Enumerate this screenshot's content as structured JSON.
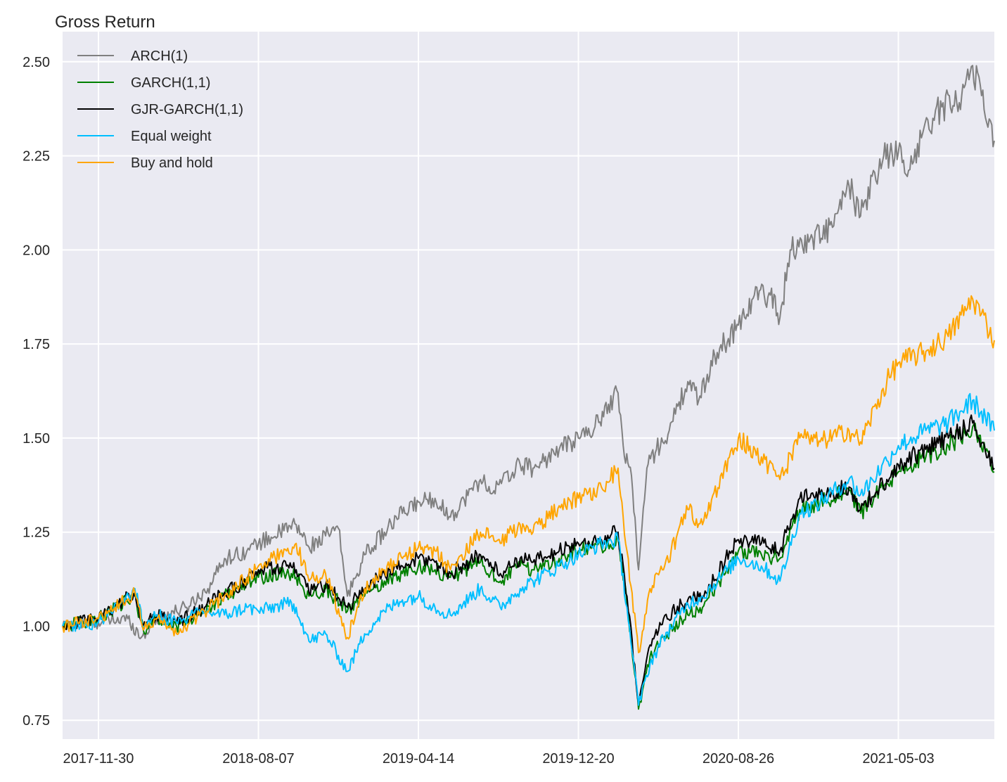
{
  "chart_data": {
    "type": "line",
    "title": "",
    "xlabel": "",
    "ylabel": "Gross Return",
    "x_ticks": [
      "2017-11-30",
      "2018-08-07",
      "2019-04-14",
      "2019-12-20",
      "2020-08-26",
      "2021-05-03"
    ],
    "x_range": [
      "2017-10-05",
      "2021-09-30"
    ],
    "y_ticks": [
      "0.75",
      "1.00",
      "1.25",
      "1.50",
      "1.75",
      "2.00",
      "2.25",
      "2.50"
    ],
    "ylim": [
      0.7,
      2.58
    ],
    "grid": true,
    "background": "#eaeaf2",
    "legend_position": "top-left",
    "series": [
      {
        "name": "ARCH(1)",
        "color": "#808080",
        "points": [
          [
            "2017-10-05",
            1.0
          ],
          [
            "2017-11-30",
            1.01
          ],
          [
            "2018-01-15",
            1.02
          ],
          [
            "2018-02-05",
            0.97
          ],
          [
            "2018-03-01",
            1.02
          ],
          [
            "2018-04-15",
            1.05
          ],
          [
            "2018-05-20",
            1.1
          ],
          [
            "2018-06-15",
            1.18
          ],
          [
            "2018-07-20",
            1.2
          ],
          [
            "2018-08-07",
            1.22
          ],
          [
            "2018-09-10",
            1.25
          ],
          [
            "2018-10-05",
            1.27
          ],
          [
            "2018-10-25",
            1.21
          ],
          [
            "2018-11-20",
            1.24
          ],
          [
            "2018-12-10",
            1.26
          ],
          [
            "2018-12-24",
            1.08
          ],
          [
            "2019-01-20",
            1.19
          ],
          [
            "2019-02-20",
            1.25
          ],
          [
            "2019-03-20",
            1.3
          ],
          [
            "2019-04-14",
            1.33
          ],
          [
            "2019-05-10",
            1.34
          ],
          [
            "2019-06-03",
            1.29
          ],
          [
            "2019-07-20",
            1.39
          ],
          [
            "2019-08-10",
            1.36
          ],
          [
            "2019-09-20",
            1.43
          ],
          [
            "2019-10-10",
            1.42
          ],
          [
            "2019-11-20",
            1.47
          ],
          [
            "2019-12-20",
            1.5
          ],
          [
            "2020-01-15",
            1.53
          ],
          [
            "2020-02-05",
            1.59
          ],
          [
            "2020-02-20",
            1.62
          ],
          [
            "2020-02-28",
            1.48
          ],
          [
            "2020-03-12",
            1.4
          ],
          [
            "2020-03-23",
            1.15
          ],
          [
            "2020-04-05",
            1.42
          ],
          [
            "2020-04-20",
            1.47
          ],
          [
            "2020-05-10",
            1.52
          ],
          [
            "2020-06-08",
            1.65
          ],
          [
            "2020-06-25",
            1.6
          ],
          [
            "2020-07-20",
            1.72
          ],
          [
            "2020-08-26",
            1.8
          ],
          [
            "2020-09-20",
            1.88
          ],
          [
            "2020-10-15",
            1.88
          ],
          [
            "2020-10-30",
            1.82
          ],
          [
            "2020-11-15",
            2.0
          ],
          [
            "2020-12-20",
            2.03
          ],
          [
            "2021-01-20",
            2.06
          ],
          [
            "2021-02-15",
            2.17
          ],
          [
            "2021-03-05",
            2.09
          ],
          [
            "2021-04-10",
            2.25
          ],
          [
            "2021-05-03",
            2.26
          ],
          [
            "2021-05-15",
            2.2
          ],
          [
            "2021-06-10",
            2.31
          ],
          [
            "2021-07-10",
            2.38
          ],
          [
            "2021-08-10",
            2.41
          ],
          [
            "2021-08-27",
            2.49
          ],
          [
            "2021-09-10",
            2.41
          ],
          [
            "2021-09-30",
            2.29
          ]
        ]
      },
      {
        "name": "GARCH(1,1)",
        "color": "#008000",
        "points": [
          [
            "2017-10-05",
            1.0
          ],
          [
            "2017-11-30",
            1.02
          ],
          [
            "2018-01-26",
            1.08
          ],
          [
            "2018-02-08",
            0.99
          ],
          [
            "2018-03-01",
            1.02
          ],
          [
            "2018-04-01",
            1.0
          ],
          [
            "2018-05-15",
            1.04
          ],
          [
            "2018-06-15",
            1.08
          ],
          [
            "2018-07-20",
            1.11
          ],
          [
            "2018-08-07",
            1.13
          ],
          [
            "2018-09-20",
            1.14
          ],
          [
            "2018-10-05",
            1.13
          ],
          [
            "2018-10-25",
            1.08
          ],
          [
            "2018-11-20",
            1.1
          ],
          [
            "2018-12-24",
            1.04
          ],
          [
            "2019-01-20",
            1.08
          ],
          [
            "2019-02-20",
            1.12
          ],
          [
            "2019-03-20",
            1.14
          ],
          [
            "2019-04-14",
            1.16
          ],
          [
            "2019-05-10",
            1.15
          ],
          [
            "2019-06-03",
            1.13
          ],
          [
            "2019-07-20",
            1.17
          ],
          [
            "2019-08-20",
            1.12
          ],
          [
            "2019-09-20",
            1.16
          ],
          [
            "2019-10-10",
            1.15
          ],
          [
            "2019-11-20",
            1.18
          ],
          [
            "2019-12-20",
            1.2
          ],
          [
            "2020-01-25",
            1.21
          ],
          [
            "2020-02-20",
            1.23
          ],
          [
            "2020-03-05",
            1.06
          ],
          [
            "2020-03-23",
            0.78
          ],
          [
            "2020-04-10",
            0.92
          ],
          [
            "2020-05-01",
            0.97
          ],
          [
            "2020-06-08",
            1.03
          ],
          [
            "2020-07-01",
            1.05
          ],
          [
            "2020-08-26",
            1.2
          ],
          [
            "2020-10-01",
            1.19
          ],
          [
            "2020-10-30",
            1.18
          ],
          [
            "2020-11-30",
            1.31
          ],
          [
            "2021-01-01",
            1.33
          ],
          [
            "2021-02-15",
            1.36
          ],
          [
            "2021-03-05",
            1.3
          ],
          [
            "2021-04-15",
            1.38
          ],
          [
            "2021-05-03",
            1.41
          ],
          [
            "2021-06-15",
            1.45
          ],
          [
            "2021-07-20",
            1.48
          ],
          [
            "2021-08-27",
            1.53
          ],
          [
            "2021-09-30",
            1.41
          ]
        ]
      },
      {
        "name": "GJR-GARCH(1,1)",
        "color": "#000000",
        "points": [
          [
            "2017-10-05",
            1.0
          ],
          [
            "2017-11-30",
            1.02
          ],
          [
            "2018-01-26",
            1.09
          ],
          [
            "2018-02-08",
            1.0
          ],
          [
            "2018-03-01",
            1.03
          ],
          [
            "2018-04-01",
            1.01
          ],
          [
            "2018-05-15",
            1.05
          ],
          [
            "2018-06-15",
            1.09
          ],
          [
            "2018-07-20",
            1.12
          ],
          [
            "2018-08-07",
            1.15
          ],
          [
            "2018-09-20",
            1.16
          ],
          [
            "2018-10-05",
            1.15
          ],
          [
            "2018-10-25",
            1.09
          ],
          [
            "2018-11-20",
            1.11
          ],
          [
            "2018-12-24",
            1.05
          ],
          [
            "2019-01-20",
            1.1
          ],
          [
            "2019-02-20",
            1.14
          ],
          [
            "2019-03-20",
            1.16
          ],
          [
            "2019-04-14",
            1.18
          ],
          [
            "2019-05-10",
            1.17
          ],
          [
            "2019-06-03",
            1.14
          ],
          [
            "2019-07-20",
            1.19
          ],
          [
            "2019-08-20",
            1.14
          ],
          [
            "2019-09-20",
            1.18
          ],
          [
            "2019-10-10",
            1.17
          ],
          [
            "2019-11-20",
            1.2
          ],
          [
            "2019-12-20",
            1.22
          ],
          [
            "2020-01-25",
            1.23
          ],
          [
            "2020-02-20",
            1.25
          ],
          [
            "2020-03-05",
            1.08
          ],
          [
            "2020-03-23",
            0.79
          ],
          [
            "2020-04-10",
            0.95
          ],
          [
            "2020-05-01",
            1.02
          ],
          [
            "2020-06-08",
            1.07
          ],
          [
            "2020-07-01",
            1.08
          ],
          [
            "2020-08-26",
            1.23
          ],
          [
            "2020-10-01",
            1.22
          ],
          [
            "2020-10-30",
            1.2
          ],
          [
            "2020-11-30",
            1.34
          ],
          [
            "2021-01-01",
            1.35
          ],
          [
            "2021-02-15",
            1.37
          ],
          [
            "2021-03-05",
            1.31
          ],
          [
            "2021-04-15",
            1.39
          ],
          [
            "2021-05-03",
            1.43
          ],
          [
            "2021-06-15",
            1.47
          ],
          [
            "2021-07-20",
            1.5
          ],
          [
            "2021-08-27",
            1.54
          ],
          [
            "2021-09-30",
            1.42
          ]
        ]
      },
      {
        "name": "Equal weight",
        "color": "#00bfff",
        "points": [
          [
            "2017-10-05",
            1.0
          ],
          [
            "2017-11-30",
            1.01
          ],
          [
            "2018-01-26",
            1.1
          ],
          [
            "2018-02-08",
            1.0
          ],
          [
            "2018-03-01",
            1.03
          ],
          [
            "2018-04-01",
            1.01
          ],
          [
            "2018-05-15",
            1.04
          ],
          [
            "2018-06-15",
            1.03
          ],
          [
            "2018-07-20",
            1.05
          ],
          [
            "2018-08-07",
            1.04
          ],
          [
            "2018-09-20",
            1.06
          ],
          [
            "2018-10-05",
            1.05
          ],
          [
            "2018-10-25",
            0.96
          ],
          [
            "2018-11-20",
            0.98
          ],
          [
            "2018-12-24",
            0.88
          ],
          [
            "2019-01-20",
            0.98
          ],
          [
            "2019-02-20",
            1.04
          ],
          [
            "2019-03-20",
            1.07
          ],
          [
            "2019-04-14",
            1.08
          ],
          [
            "2019-05-10",
            1.05
          ],
          [
            "2019-06-03",
            1.03
          ],
          [
            "2019-07-20",
            1.1
          ],
          [
            "2019-08-20",
            1.05
          ],
          [
            "2019-09-20",
            1.1
          ],
          [
            "2019-10-10",
            1.12
          ],
          [
            "2019-11-20",
            1.16
          ],
          [
            "2019-12-20",
            1.19
          ],
          [
            "2020-01-25",
            1.22
          ],
          [
            "2020-02-20",
            1.23
          ],
          [
            "2020-03-05",
            1.05
          ],
          [
            "2020-03-23",
            0.79
          ],
          [
            "2020-04-10",
            0.9
          ],
          [
            "2020-05-01",
            0.97
          ],
          [
            "2020-06-08",
            1.06
          ],
          [
            "2020-07-01",
            1.08
          ],
          [
            "2020-08-26",
            1.18
          ],
          [
            "2020-10-01",
            1.16
          ],
          [
            "2020-10-30",
            1.12
          ],
          [
            "2020-11-30",
            1.3
          ],
          [
            "2021-01-01",
            1.33
          ],
          [
            "2021-02-15",
            1.39
          ],
          [
            "2021-03-05",
            1.35
          ],
          [
            "2021-04-15",
            1.44
          ],
          [
            "2021-05-03",
            1.48
          ],
          [
            "2021-06-15",
            1.52
          ],
          [
            "2021-07-20",
            1.54
          ],
          [
            "2021-08-27",
            1.6
          ],
          [
            "2021-09-30",
            1.52
          ]
        ]
      },
      {
        "name": "Buy and hold",
        "color": "#ffa500",
        "points": [
          [
            "2017-10-05",
            1.0
          ],
          [
            "2017-11-30",
            1.02
          ],
          [
            "2018-01-26",
            1.09
          ],
          [
            "2018-02-08",
            0.99
          ],
          [
            "2018-03-01",
            1.02
          ],
          [
            "2018-04-01",
            0.98
          ],
          [
            "2018-05-15",
            1.04
          ],
          [
            "2018-06-15",
            1.08
          ],
          [
            "2018-07-20",
            1.13
          ],
          [
            "2018-08-07",
            1.16
          ],
          [
            "2018-09-20",
            1.2
          ],
          [
            "2018-10-05",
            1.22
          ],
          [
            "2018-10-25",
            1.12
          ],
          [
            "2018-11-20",
            1.14
          ],
          [
            "2018-12-24",
            0.97
          ],
          [
            "2019-01-20",
            1.1
          ],
          [
            "2019-02-20",
            1.15
          ],
          [
            "2019-03-20",
            1.18
          ],
          [
            "2019-04-14",
            1.21
          ],
          [
            "2019-05-10",
            1.2
          ],
          [
            "2019-06-03",
            1.15
          ],
          [
            "2019-07-20",
            1.25
          ],
          [
            "2019-08-20",
            1.22
          ],
          [
            "2019-09-20",
            1.27
          ],
          [
            "2019-10-10",
            1.25
          ],
          [
            "2019-11-20",
            1.32
          ],
          [
            "2019-12-20",
            1.34
          ],
          [
            "2020-01-25",
            1.37
          ],
          [
            "2020-02-20",
            1.42
          ],
          [
            "2020-03-05",
            1.2
          ],
          [
            "2020-03-23",
            0.93
          ],
          [
            "2020-04-10",
            1.1
          ],
          [
            "2020-05-01",
            1.15
          ],
          [
            "2020-06-08",
            1.31
          ],
          [
            "2020-07-01",
            1.27
          ],
          [
            "2020-08-26",
            1.5
          ],
          [
            "2020-10-01",
            1.45
          ],
          [
            "2020-10-30",
            1.39
          ],
          [
            "2020-11-30",
            1.5
          ],
          [
            "2021-01-01",
            1.49
          ],
          [
            "2021-02-15",
            1.52
          ],
          [
            "2021-03-05",
            1.49
          ],
          [
            "2021-04-15",
            1.65
          ],
          [
            "2021-05-03",
            1.7
          ],
          [
            "2021-06-15",
            1.73
          ],
          [
            "2021-07-20",
            1.77
          ],
          [
            "2021-08-27",
            1.87
          ],
          [
            "2021-09-10",
            1.83
          ],
          [
            "2021-09-30",
            1.76
          ]
        ]
      }
    ]
  }
}
